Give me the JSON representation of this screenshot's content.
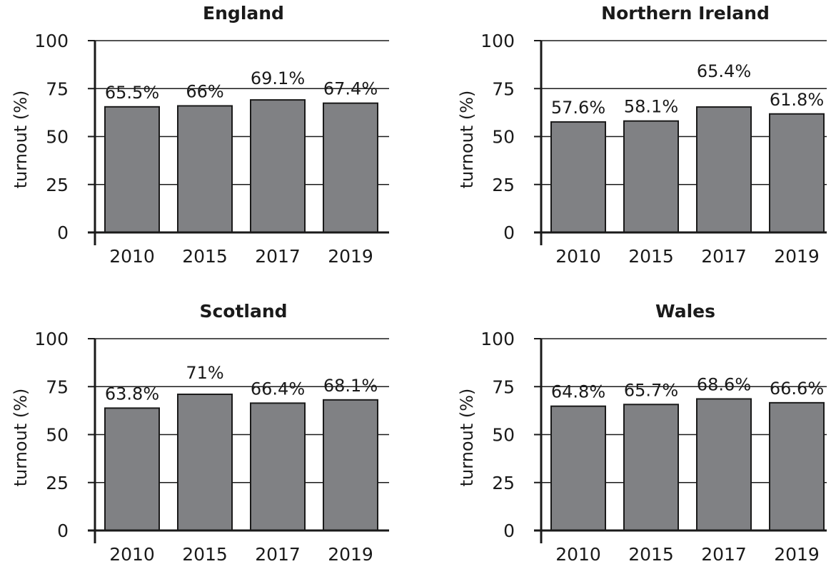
{
  "chart_data": [
    {
      "type": "bar",
      "title": "England",
      "categories": [
        "2010",
        "2015",
        "2017",
        "2019"
      ],
      "values": [
        65.5,
        66,
        69.1,
        67.4
      ],
      "data_labels": [
        "65.5%",
        "66%",
        "69.1%",
        "67.4%"
      ],
      "ylabel": "turnout (%)",
      "xlabel": "",
      "ylim": [
        0,
        100
      ],
      "yticks": [
        "0",
        "25",
        "50",
        "75",
        "100"
      ],
      "grid": true,
      "bar_color": "#808184"
    },
    {
      "type": "bar",
      "title": "Northern Ireland",
      "categories": [
        "2010",
        "2015",
        "2017",
        "2019"
      ],
      "values": [
        57.6,
        58.1,
        65.4,
        61.8
      ],
      "data_labels": [
        "57.6%",
        "58.1%",
        "65.4%",
        "61.8%"
      ],
      "ylabel": "turnout (%)",
      "xlabel": "",
      "ylim": [
        0,
        100
      ],
      "yticks": [
        "0",
        "25",
        "50",
        "75",
        "100"
      ],
      "grid": true,
      "bar_color": "#808184"
    },
    {
      "type": "bar",
      "title": "Scotland",
      "categories": [
        "2010",
        "2015",
        "2017",
        "2019"
      ],
      "values": [
        63.8,
        71,
        66.4,
        68.1
      ],
      "data_labels": [
        "63.8%",
        "71%",
        "66.4%",
        "68.1%"
      ],
      "ylabel": "turnout (%)",
      "xlabel": "",
      "ylim": [
        0,
        100
      ],
      "yticks": [
        "0",
        "25",
        "50",
        "75",
        "100"
      ],
      "grid": true,
      "bar_color": "#808184"
    },
    {
      "type": "bar",
      "title": "Wales",
      "categories": [
        "2010",
        "2015",
        "2017",
        "2019"
      ],
      "values": [
        64.8,
        65.7,
        68.6,
        66.6
      ],
      "data_labels": [
        "64.8%",
        "65.7%",
        "68.6%",
        "66.6%"
      ],
      "ylabel": "turnout (%)",
      "xlabel": "",
      "ylim": [
        0,
        100
      ],
      "yticks": [
        "0",
        "25",
        "50",
        "75",
        "100"
      ],
      "grid": true,
      "bar_color": "#808184"
    }
  ]
}
